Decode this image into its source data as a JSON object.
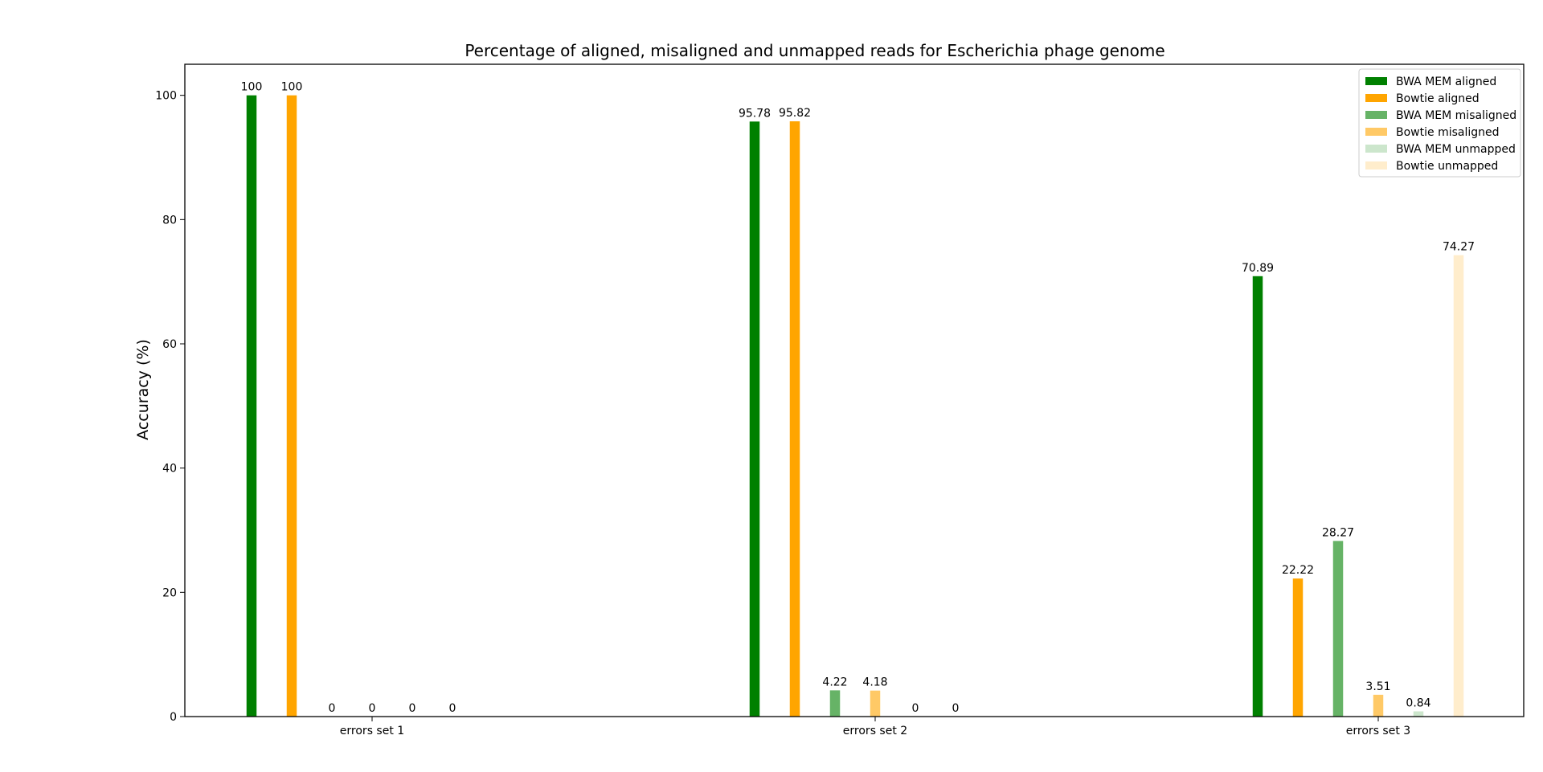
{
  "chart_data": {
    "type": "bar",
    "title": "Percentage of aligned, misaligned and unmapped reads for Escherichia phage genome",
    "xlabel": "",
    "ylabel": "Accuracy (%)",
    "ylim": [
      0,
      105
    ],
    "yticks": [
      0,
      20,
      40,
      60,
      80,
      100
    ],
    "grid": false,
    "legend_position": "top-right",
    "categories": [
      "errors set 1",
      "errors set 2",
      "errors set 3"
    ],
    "series": [
      {
        "name": "BWA MEM aligned",
        "color": "#008000",
        "values": [
          100,
          95.78,
          70.89
        ],
        "labels": [
          "100",
          "95.78",
          "70.89"
        ]
      },
      {
        "name": "Bowtie aligned",
        "color": "#ffa500",
        "values": [
          100,
          95.82,
          22.22
        ],
        "labels": [
          "100",
          "95.82",
          "22.22"
        ]
      },
      {
        "name": "BWA MEM misaligned",
        "color": "#66b366",
        "values": [
          0,
          4.22,
          28.27
        ],
        "labels": [
          "0",
          "4.22",
          "28.27"
        ]
      },
      {
        "name": "Bowtie misaligned",
        "color": "#ffc966",
        "values": [
          0,
          4.18,
          3.51
        ],
        "labels": [
          "0",
          "4.18",
          "3.51"
        ]
      },
      {
        "name": "BWA MEM unmapped",
        "color": "#cce6cc",
        "values": [
          0,
          0,
          0.84
        ],
        "labels": [
          "0",
          "0",
          "0.84"
        ]
      },
      {
        "name": "Bowtie unmapped",
        "color": "#ffedcc",
        "values": [
          0,
          0,
          74.27
        ],
        "labels": [
          "0",
          "0",
          "74.27"
        ]
      }
    ]
  }
}
